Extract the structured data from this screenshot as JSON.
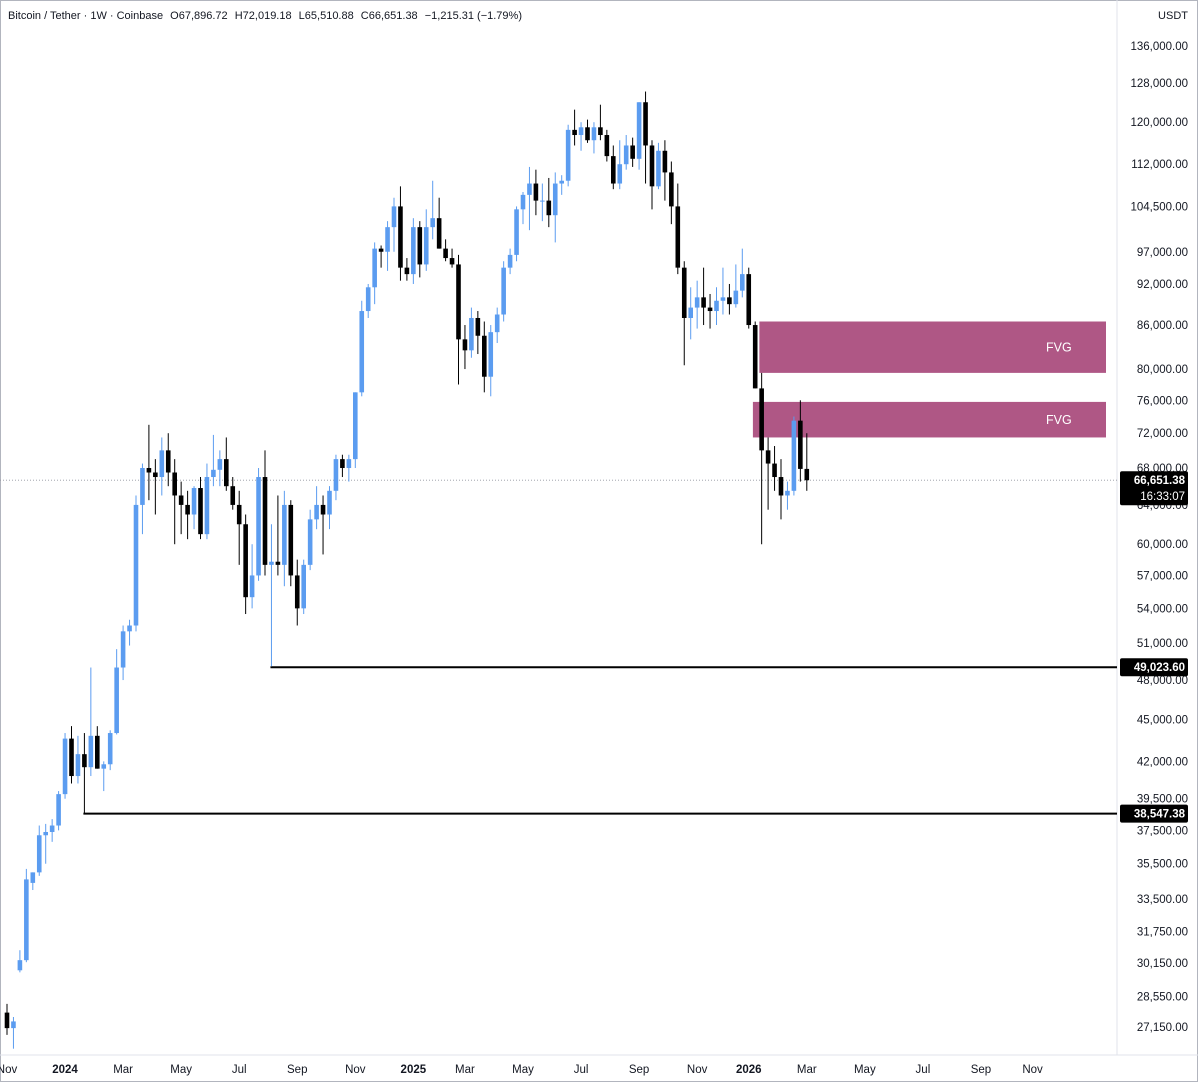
{
  "legend": {
    "symbol": "Bitcoin / Tether · 1W · Coinbase",
    "open": "O67,896.72",
    "high": "H72,019.18",
    "low": "L65,510.88",
    "close": "C66,651.38",
    "change": "−1,215.31 (−1.79%)"
  },
  "axis": {
    "currency": "USDT",
    "price_ticks": [
      136000,
      128000,
      120000,
      112000,
      104500,
      97000,
      92000,
      86000,
      80000,
      76000,
      72000,
      68000,
      64000,
      60000,
      57000,
      54000,
      51000,
      48000,
      45000,
      42000,
      39500,
      37500,
      35500,
      33500,
      31750,
      30150,
      28550,
      27150
    ],
    "price_tick_labels": [
      "136,000.00",
      "128,000.00",
      "120,000.00",
      "112,000.00",
      "104,500.00",
      "97,000.00",
      "92,000.00",
      "86,000.00",
      "80,000.00",
      "76,000.00",
      "72,000.00",
      "68,000.00",
      "64,000.00",
      "60,000.00",
      "57,000.00",
      "54,000.00",
      "51,000.00",
      "48,000.00",
      "45,000.00",
      "42,000.00",
      "39,500.00",
      "37,500.00",
      "35,500.00",
      "33,500.00",
      "31,750.00",
      "30,150.00",
      "28,550.00",
      "27,150.00"
    ],
    "time_labels": [
      {
        "text": "Nov",
        "week": 0,
        "bold": false
      },
      {
        "text": "2024",
        "week": 9,
        "bold": true
      },
      {
        "text": "Mar",
        "week": 18,
        "bold": false
      },
      {
        "text": "May",
        "week": 27,
        "bold": false
      },
      {
        "text": "Jul",
        "week": 36,
        "bold": false
      },
      {
        "text": "Sep",
        "week": 45,
        "bold": false
      },
      {
        "text": "Nov",
        "week": 54,
        "bold": false
      },
      {
        "text": "2025",
        "week": 63,
        "bold": true
      },
      {
        "text": "Mar",
        "week": 71,
        "bold": false
      },
      {
        "text": "May",
        "week": 80,
        "bold": false
      },
      {
        "text": "Jul",
        "week": 89,
        "bold": false
      },
      {
        "text": "Sep",
        "week": 98,
        "bold": false
      },
      {
        "text": "Nov",
        "week": 107,
        "bold": false
      },
      {
        "text": "2026",
        "week": 115,
        "bold": true
      },
      {
        "text": "Mar",
        "week": 124,
        "bold": false
      },
      {
        "text": "May",
        "week": 133,
        "bold": false
      },
      {
        "text": "Jul",
        "week": 142,
        "bold": false
      },
      {
        "text": "Sep",
        "week": 151,
        "bold": false
      },
      {
        "text": "Nov",
        "week": 159,
        "bold": false
      }
    ]
  },
  "markers": {
    "last_price": "66,651.38",
    "countdown": "16:33:07",
    "level_1": "49,023.60",
    "level_2": "38,547.38"
  },
  "fvg_label": "FVG",
  "colors": {
    "up": "#5b9cf0",
    "down": "#000000",
    "fvg": "#a8497b",
    "line": "#000000"
  },
  "chart_data": {
    "type": "candlestick",
    "title": "Bitcoin / Tether · 1W · Coinbase",
    "x_unit": "week",
    "y_scale": "log",
    "ylim": [
      26500,
      140000
    ],
    "candles": [
      {
        "w": 0,
        "o": 27800,
        "h": 28200,
        "l": 26800,
        "c": 27100
      },
      {
        "w": 1,
        "o": 27100,
        "h": 27600,
        "l": 26200,
        "c": 27400
      },
      {
        "w": 2,
        "o": 29800,
        "h": 30800,
        "l": 29700,
        "c": 30300
      },
      {
        "w": 3,
        "o": 30300,
        "h": 35200,
        "l": 30200,
        "c": 34600
      },
      {
        "w": 4,
        "o": 34400,
        "h": 35000,
        "l": 34000,
        "c": 35000
      },
      {
        "w": 5,
        "o": 35000,
        "h": 37800,
        "l": 34800,
        "c": 37200
      },
      {
        "w": 6,
        "o": 37200,
        "h": 37900,
        "l": 35500,
        "c": 37400
      },
      {
        "w": 7,
        "o": 37400,
        "h": 38200,
        "l": 36800,
        "c": 37800
      },
      {
        "w": 8,
        "o": 37800,
        "h": 40000,
        "l": 37500,
        "c": 39800
      },
      {
        "w": 9,
        "o": 39800,
        "h": 44000,
        "l": 39500,
        "c": 43600
      },
      {
        "w": 10,
        "o": 43600,
        "h": 44500,
        "l": 40500,
        "c": 41000
      },
      {
        "w": 11,
        "o": 41000,
        "h": 43800,
        "l": 40500,
        "c": 42500
      },
      {
        "w": 12,
        "o": 42500,
        "h": 44000,
        "l": 38500,
        "c": 41600
      },
      {
        "w": 13,
        "o": 41600,
        "h": 49000,
        "l": 41000,
        "c": 43800
      },
      {
        "w": 14,
        "o": 43800,
        "h": 44500,
        "l": 41500,
        "c": 41500
      },
      {
        "w": 15,
        "o": 41500,
        "h": 42000,
        "l": 40000,
        "c": 41800
      },
      {
        "w": 16,
        "o": 41800,
        "h": 44200,
        "l": 41400,
        "c": 44000
      },
      {
        "w": 17,
        "o": 44000,
        "h": 50500,
        "l": 43900,
        "c": 49000
      },
      {
        "w": 18,
        "o": 49000,
        "h": 52500,
        "l": 48000,
        "c": 52000
      },
      {
        "w": 19,
        "o": 52000,
        "h": 53000,
        "l": 50800,
        "c": 52500
      },
      {
        "w": 20,
        "o": 52500,
        "h": 65000,
        "l": 52000,
        "c": 64000
      },
      {
        "w": 21,
        "o": 64000,
        "h": 68500,
        "l": 61000,
        "c": 68000
      },
      {
        "w": 22,
        "o": 68000,
        "h": 73000,
        "l": 64500,
        "c": 67500
      },
      {
        "w": 23,
        "o": 67500,
        "h": 69000,
        "l": 63000,
        "c": 67000
      },
      {
        "w": 24,
        "o": 67000,
        "h": 71500,
        "l": 65000,
        "c": 70000
      },
      {
        "w": 25,
        "o": 70000,
        "h": 72000,
        "l": 66000,
        "c": 67500
      },
      {
        "w": 26,
        "o": 67500,
        "h": 69000,
        "l": 60000,
        "c": 65000
      },
      {
        "w": 27,
        "o": 65000,
        "h": 66500,
        "l": 61000,
        "c": 64000
      },
      {
        "w": 28,
        "o": 64000,
        "h": 65500,
        "l": 60500,
        "c": 63000
      },
      {
        "w": 29,
        "o": 63000,
        "h": 66000,
        "l": 61500,
        "c": 65800
      },
      {
        "w": 30,
        "o": 65800,
        "h": 67000,
        "l": 60500,
        "c": 61000
      },
      {
        "w": 31,
        "o": 61000,
        "h": 68500,
        "l": 60500,
        "c": 67000
      },
      {
        "w": 32,
        "o": 67000,
        "h": 71800,
        "l": 66000,
        "c": 67800
      },
      {
        "w": 33,
        "o": 67800,
        "h": 70000,
        "l": 66000,
        "c": 69000
      },
      {
        "w": 34,
        "o": 69000,
        "h": 71500,
        "l": 65500,
        "c": 66000
      },
      {
        "w": 35,
        "o": 66000,
        "h": 67000,
        "l": 63500,
        "c": 64000
      },
      {
        "w": 36,
        "o": 64000,
        "h": 65500,
        "l": 58000,
        "c": 62000
      },
      {
        "w": 37,
        "o": 62000,
        "h": 63000,
        "l": 53500,
        "c": 55000
      },
      {
        "w": 38,
        "o": 55000,
        "h": 60000,
        "l": 54000,
        "c": 57000
      },
      {
        "w": 39,
        "o": 57000,
        "h": 68000,
        "l": 56500,
        "c": 67000
      },
      {
        "w": 40,
        "o": 67000,
        "h": 70000,
        "l": 57000,
        "c": 58000
      },
      {
        "w": 41,
        "o": 58000,
        "h": 62000,
        "l": 49100,
        "c": 58300
      },
      {
        "w": 42,
        "o": 58300,
        "h": 65000,
        "l": 57000,
        "c": 58000
      },
      {
        "w": 43,
        "o": 58000,
        "h": 65500,
        "l": 56000,
        "c": 64000
      },
      {
        "w": 44,
        "o": 64000,
        "h": 64500,
        "l": 56000,
        "c": 57000
      },
      {
        "w": 45,
        "o": 57000,
        "h": 58500,
        "l": 52500,
        "c": 54000
      },
      {
        "w": 46,
        "o": 54000,
        "h": 58500,
        "l": 53500,
        "c": 58000
      },
      {
        "w": 47,
        "o": 58000,
        "h": 63500,
        "l": 57500,
        "c": 62500
      },
      {
        "w": 48,
        "o": 62500,
        "h": 66000,
        "l": 61500,
        "c": 64000
      },
      {
        "w": 49,
        "o": 64000,
        "h": 65000,
        "l": 59000,
        "c": 63000
      },
      {
        "w": 50,
        "o": 63000,
        "h": 66000,
        "l": 61500,
        "c": 65500
      },
      {
        "w": 51,
        "o": 65500,
        "h": 69500,
        "l": 64500,
        "c": 69000
      },
      {
        "w": 52,
        "o": 69000,
        "h": 69500,
        "l": 67000,
        "c": 68000
      },
      {
        "w": 53,
        "o": 68000,
        "h": 69500,
        "l": 66500,
        "c": 69000
      },
      {
        "w": 54,
        "o": 69000,
        "h": 77000,
        "l": 68000,
        "c": 77000
      },
      {
        "w": 55,
        "o": 77000,
        "h": 89500,
        "l": 76500,
        "c": 88000
      },
      {
        "w": 56,
        "o": 88000,
        "h": 92000,
        "l": 87000,
        "c": 91500
      },
      {
        "w": 57,
        "o": 91500,
        "h": 98500,
        "l": 89000,
        "c": 97500
      },
      {
        "w": 58,
        "o": 97500,
        "h": 98000,
        "l": 94500,
        "c": 97000
      },
      {
        "w": 59,
        "o": 97000,
        "h": 102000,
        "l": 94000,
        "c": 101000
      },
      {
        "w": 60,
        "o": 101000,
        "h": 106000,
        "l": 97000,
        "c": 104500
      },
      {
        "w": 61,
        "o": 104500,
        "h": 108000,
        "l": 92500,
        "c": 94500
      },
      {
        "w": 62,
        "o": 94500,
        "h": 96000,
        "l": 92500,
        "c": 93500
      },
      {
        "w": 63,
        "o": 93500,
        "h": 102500,
        "l": 92000,
        "c": 101000
      },
      {
        "w": 64,
        "o": 101000,
        "h": 102000,
        "l": 93000,
        "c": 95000
      },
      {
        "w": 65,
        "o": 95000,
        "h": 104000,
        "l": 94000,
        "c": 101000
      },
      {
        "w": 66,
        "o": 101000,
        "h": 109000,
        "l": 99000,
        "c": 102500
      },
      {
        "w": 67,
        "o": 102500,
        "h": 106000,
        "l": 97500,
        "c": 97500
      },
      {
        "w": 68,
        "o": 97500,
        "h": 99000,
        "l": 95500,
        "c": 96000
      },
      {
        "w": 69,
        "o": 96000,
        "h": 97500,
        "l": 94500,
        "c": 95000
      },
      {
        "w": 70,
        "o": 95000,
        "h": 96500,
        "l": 78000,
        "c": 84000
      },
      {
        "w": 71,
        "o": 84000,
        "h": 86000,
        "l": 80000,
        "c": 82500
      },
      {
        "w": 72,
        "o": 82500,
        "h": 88500,
        "l": 81500,
        "c": 87000
      },
      {
        "w": 73,
        "o": 87000,
        "h": 88000,
        "l": 82000,
        "c": 84500
      },
      {
        "w": 74,
        "o": 84500,
        "h": 86500,
        "l": 77000,
        "c": 79000
      },
      {
        "w": 75,
        "o": 79000,
        "h": 86000,
        "l": 76500,
        "c": 85000
      },
      {
        "w": 76,
        "o": 85000,
        "h": 88500,
        "l": 83500,
        "c": 87500
      },
      {
        "w": 77,
        "o": 87500,
        "h": 95500,
        "l": 86500,
        "c": 94500
      },
      {
        "w": 78,
        "o": 94500,
        "h": 97500,
        "l": 93500,
        "c": 96500
      },
      {
        "w": 79,
        "o": 96500,
        "h": 104500,
        "l": 95500,
        "c": 104000
      },
      {
        "w": 80,
        "o": 104000,
        "h": 107000,
        "l": 101500,
        "c": 106500
      },
      {
        "w": 81,
        "o": 106500,
        "h": 111500,
        "l": 100500,
        "c": 108500
      },
      {
        "w": 82,
        "o": 108500,
        "h": 111000,
        "l": 103000,
        "c": 105500
      },
      {
        "w": 83,
        "o": 105500,
        "h": 108500,
        "l": 102000,
        "c": 105500
      },
      {
        "w": 84,
        "o": 105500,
        "h": 109500,
        "l": 101000,
        "c": 103000
      },
      {
        "w": 85,
        "o": 103000,
        "h": 110500,
        "l": 98500,
        "c": 108500
      },
      {
        "w": 86,
        "o": 108500,
        "h": 110000,
        "l": 106500,
        "c": 109000
      },
      {
        "w": 87,
        "o": 109000,
        "h": 119500,
        "l": 108000,
        "c": 118500
      },
      {
        "w": 88,
        "o": 118500,
        "h": 122500,
        "l": 115500,
        "c": 117500
      },
      {
        "w": 89,
        "o": 117500,
        "h": 120000,
        "l": 114500,
        "c": 119000
      },
      {
        "w": 90,
        "o": 119000,
        "h": 120500,
        "l": 116000,
        "c": 116500
      },
      {
        "w": 91,
        "o": 116500,
        "h": 120000,
        "l": 114000,
        "c": 119000
      },
      {
        "w": 92,
        "o": 119000,
        "h": 123500,
        "l": 116500,
        "c": 117500
      },
      {
        "w": 93,
        "o": 117500,
        "h": 118500,
        "l": 112500,
        "c": 113500
      },
      {
        "w": 94,
        "o": 113500,
        "h": 115500,
        "l": 107500,
        "c": 108500
      },
      {
        "w": 95,
        "o": 108500,
        "h": 116500,
        "l": 107500,
        "c": 112000
      },
      {
        "w": 96,
        "o": 112000,
        "h": 117500,
        "l": 111000,
        "c": 115500
      },
      {
        "w": 97,
        "o": 115500,
        "h": 117000,
        "l": 111500,
        "c": 113000
      },
      {
        "w": 98,
        "o": 113000,
        "h": 124000,
        "l": 111000,
        "c": 124000
      },
      {
        "w": 99,
        "o": 124000,
        "h": 126200,
        "l": 108500,
        "c": 115500
      },
      {
        "w": 100,
        "o": 115500,
        "h": 116500,
        "l": 104000,
        "c": 108000
      },
      {
        "w": 101,
        "o": 108000,
        "h": 116000,
        "l": 107500,
        "c": 114500
      },
      {
        "w": 102,
        "o": 114500,
        "h": 116500,
        "l": 105500,
        "c": 110500
      },
      {
        "w": 103,
        "o": 110500,
        "h": 112500,
        "l": 101500,
        "c": 104500
      },
      {
        "w": 104,
        "o": 104500,
        "h": 108500,
        "l": 93500,
        "c": 94500
      },
      {
        "w": 105,
        "o": 94500,
        "h": 95500,
        "l": 80500,
        "c": 87000
      },
      {
        "w": 106,
        "o": 87000,
        "h": 91500,
        "l": 84000,
        "c": 88500
      },
      {
        "w": 107,
        "o": 88500,
        "h": 92500,
        "l": 85500,
        "c": 90000
      },
      {
        "w": 108,
        "o": 90000,
        "h": 94500,
        "l": 86000,
        "c": 88500
      },
      {
        "w": 109,
        "o": 88500,
        "h": 90500,
        "l": 85500,
        "c": 88000
      },
      {
        "w": 110,
        "o": 88000,
        "h": 91500,
        "l": 86000,
        "c": 89500
      },
      {
        "w": 111,
        "o": 89500,
        "h": 94500,
        "l": 87500,
        "c": 90000
      },
      {
        "w": 112,
        "o": 90000,
        "h": 92000,
        "l": 87500,
        "c": 89000
      },
      {
        "w": 113,
        "o": 89000,
        "h": 95000,
        "l": 88500,
        "c": 91000
      },
      {
        "w": 114,
        "o": 91000,
        "h": 97500,
        "l": 90000,
        "c": 93500
      },
      {
        "w": 115,
        "o": 93500,
        "h": 94500,
        "l": 85500,
        "c": 86000
      },
      {
        "w": 116,
        "o": 86000,
        "h": 86500,
        "l": 77500,
        "c": 77500
      },
      {
        "w": 117,
        "o": 77500,
        "h": 79500,
        "l": 60000,
        "c": 70000
      },
      {
        "w": 118,
        "o": 70000,
        "h": 71500,
        "l": 63500,
        "c": 68500
      },
      {
        "w": 119,
        "o": 68500,
        "h": 70500,
        "l": 65500,
        "c": 67000
      },
      {
        "w": 120,
        "o": 67000,
        "h": 69000,
        "l": 62500,
        "c": 65000
      },
      {
        "w": 121,
        "o": 65000,
        "h": 66500,
        "l": 63500,
        "c": 65500
      },
      {
        "w": 122,
        "o": 65500,
        "h": 74000,
        "l": 65000,
        "c": 73500
      },
      {
        "w": 123,
        "o": 73500,
        "h": 76000,
        "l": 66500,
        "c": 67900
      },
      {
        "w": 124,
        "o": 67900,
        "h": 72000,
        "l": 65500,
        "c": 66650
      }
    ],
    "fvg_zones": [
      {
        "label": "FVG",
        "top": 86500,
        "bottom": 79500,
        "start_week": 117
      },
      {
        "label": "FVG",
        "top": 75800,
        "bottom": 71500,
        "start_week": 116
      }
    ],
    "horizontal_levels": [
      {
        "value": 49023.6,
        "label": "49,023.60",
        "start_week": 41
      },
      {
        "value": 38547.38,
        "label": "38,547.38",
        "start_week": 12
      }
    ],
    "last_price": 66651.38
  }
}
